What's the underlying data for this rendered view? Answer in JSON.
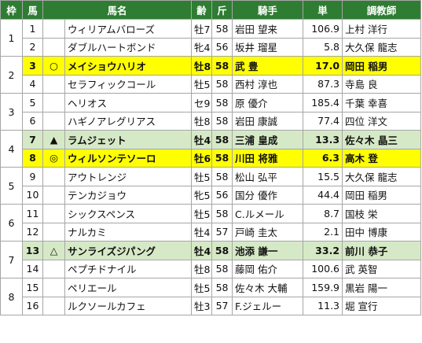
{
  "headers": {
    "waku": "枠",
    "uma": "馬",
    "mark": "",
    "name": "馬名",
    "sex_age": "齢",
    "weight": "斤",
    "jockey": "騎手",
    "odds": "単",
    "trainer": "調教師"
  },
  "colors": {
    "header_bg": "#2e7d32",
    "highlight_yellow": "#ffff00",
    "highlight_green": "#d6e9c6"
  },
  "rows": [
    {
      "waku": "1",
      "num": "1",
      "mark": "",
      "name": "ウィリアムバローズ",
      "sex_age": "牡7",
      "weight": "58",
      "jockey": "岩田 望来",
      "odds": "106.9",
      "trainer": "上村 洋行",
      "highlight": ""
    },
    {
      "waku": "",
      "num": "2",
      "mark": "",
      "name": "ダブルハートボンド",
      "sex_age": "牝4",
      "weight": "56",
      "jockey": "坂井 瑠星",
      "odds": "5.8",
      "trainer": "大久保 龍志",
      "highlight": ""
    },
    {
      "waku": "2",
      "num": "3",
      "mark": "○",
      "name": "メイショウハリオ",
      "sex_age": "牡8",
      "weight": "58",
      "jockey": "武 豊",
      "odds": "17.0",
      "trainer": "岡田 稲男",
      "highlight": "yellow"
    },
    {
      "waku": "",
      "num": "4",
      "mark": "",
      "name": "セラフィックコール",
      "sex_age": "牡5",
      "weight": "58",
      "jockey": "西村 淳也",
      "odds": "87.3",
      "trainer": "寺島 良",
      "highlight": ""
    },
    {
      "waku": "3",
      "num": "5",
      "mark": "",
      "name": "ヘリオス",
      "sex_age": "セ9",
      "weight": "58",
      "jockey": "原 優介",
      "odds": "185.4",
      "trainer": "千葉 幸喜",
      "highlight": ""
    },
    {
      "waku": "",
      "num": "6",
      "mark": "",
      "name": "ハギノアレグリアス",
      "sex_age": "牡8",
      "weight": "58",
      "jockey": "岩田 康誠",
      "odds": "77.4",
      "trainer": "四位 洋文",
      "highlight": ""
    },
    {
      "waku": "4",
      "num": "7",
      "mark": "▲",
      "name": "ラムジェット",
      "sex_age": "牡4",
      "weight": "58",
      "jockey": "三浦 皇成",
      "odds": "13.3",
      "trainer": "佐々木 晶三",
      "highlight": "green"
    },
    {
      "waku": "",
      "num": "8",
      "mark": "◎",
      "name": "ウィルソンテソーロ",
      "sex_age": "牡6",
      "weight": "58",
      "jockey": "川田 将雅",
      "odds": "6.3",
      "trainer": "高木 登",
      "highlight": "yellow"
    },
    {
      "waku": "5",
      "num": "9",
      "mark": "",
      "name": "アウトレンジ",
      "sex_age": "牡5",
      "weight": "58",
      "jockey": "松山 弘平",
      "odds": "15.5",
      "trainer": "大久保 龍志",
      "highlight": ""
    },
    {
      "waku": "",
      "num": "10",
      "mark": "",
      "name": "テンカジョウ",
      "sex_age": "牝5",
      "weight": "56",
      "jockey": "国分 優作",
      "odds": "44.4",
      "trainer": "岡田 稲男",
      "highlight": ""
    },
    {
      "waku": "6",
      "num": "11",
      "mark": "",
      "name": "シックスペンス",
      "sex_age": "牡5",
      "weight": "58",
      "jockey": "C.ルメール",
      "odds": "8.7",
      "trainer": "国枝 栄",
      "highlight": ""
    },
    {
      "waku": "",
      "num": "12",
      "mark": "",
      "name": "ナルカミ",
      "sex_age": "牡4",
      "weight": "57",
      "jockey": "戸崎 圭太",
      "odds": "2.1",
      "trainer": "田中 博康",
      "highlight": ""
    },
    {
      "waku": "7",
      "num": "13",
      "mark": "△",
      "name": "サンライズジパング",
      "sex_age": "牡4",
      "weight": "58",
      "jockey": "池添 謙一",
      "odds": "33.2",
      "trainer": "前川 恭子",
      "highlight": "green"
    },
    {
      "waku": "",
      "num": "14",
      "mark": "",
      "name": "ペプチドナイル",
      "sex_age": "牡8",
      "weight": "58",
      "jockey": "藤岡 佑介",
      "odds": "100.6",
      "trainer": "武 英智",
      "highlight": ""
    },
    {
      "waku": "8",
      "num": "15",
      "mark": "",
      "name": "ペリエール",
      "sex_age": "牡5",
      "weight": "58",
      "jockey": "佐々木 大輔",
      "odds": "159.9",
      "trainer": "黒岩 陽一",
      "highlight": ""
    },
    {
      "waku": "",
      "num": "16",
      "mark": "",
      "name": "ルクソールカフェ",
      "sex_age": "牡3",
      "weight": "57",
      "jockey": "F.ジェルー",
      "odds": "11.3",
      "trainer": "堀 宣行",
      "highlight": ""
    }
  ]
}
